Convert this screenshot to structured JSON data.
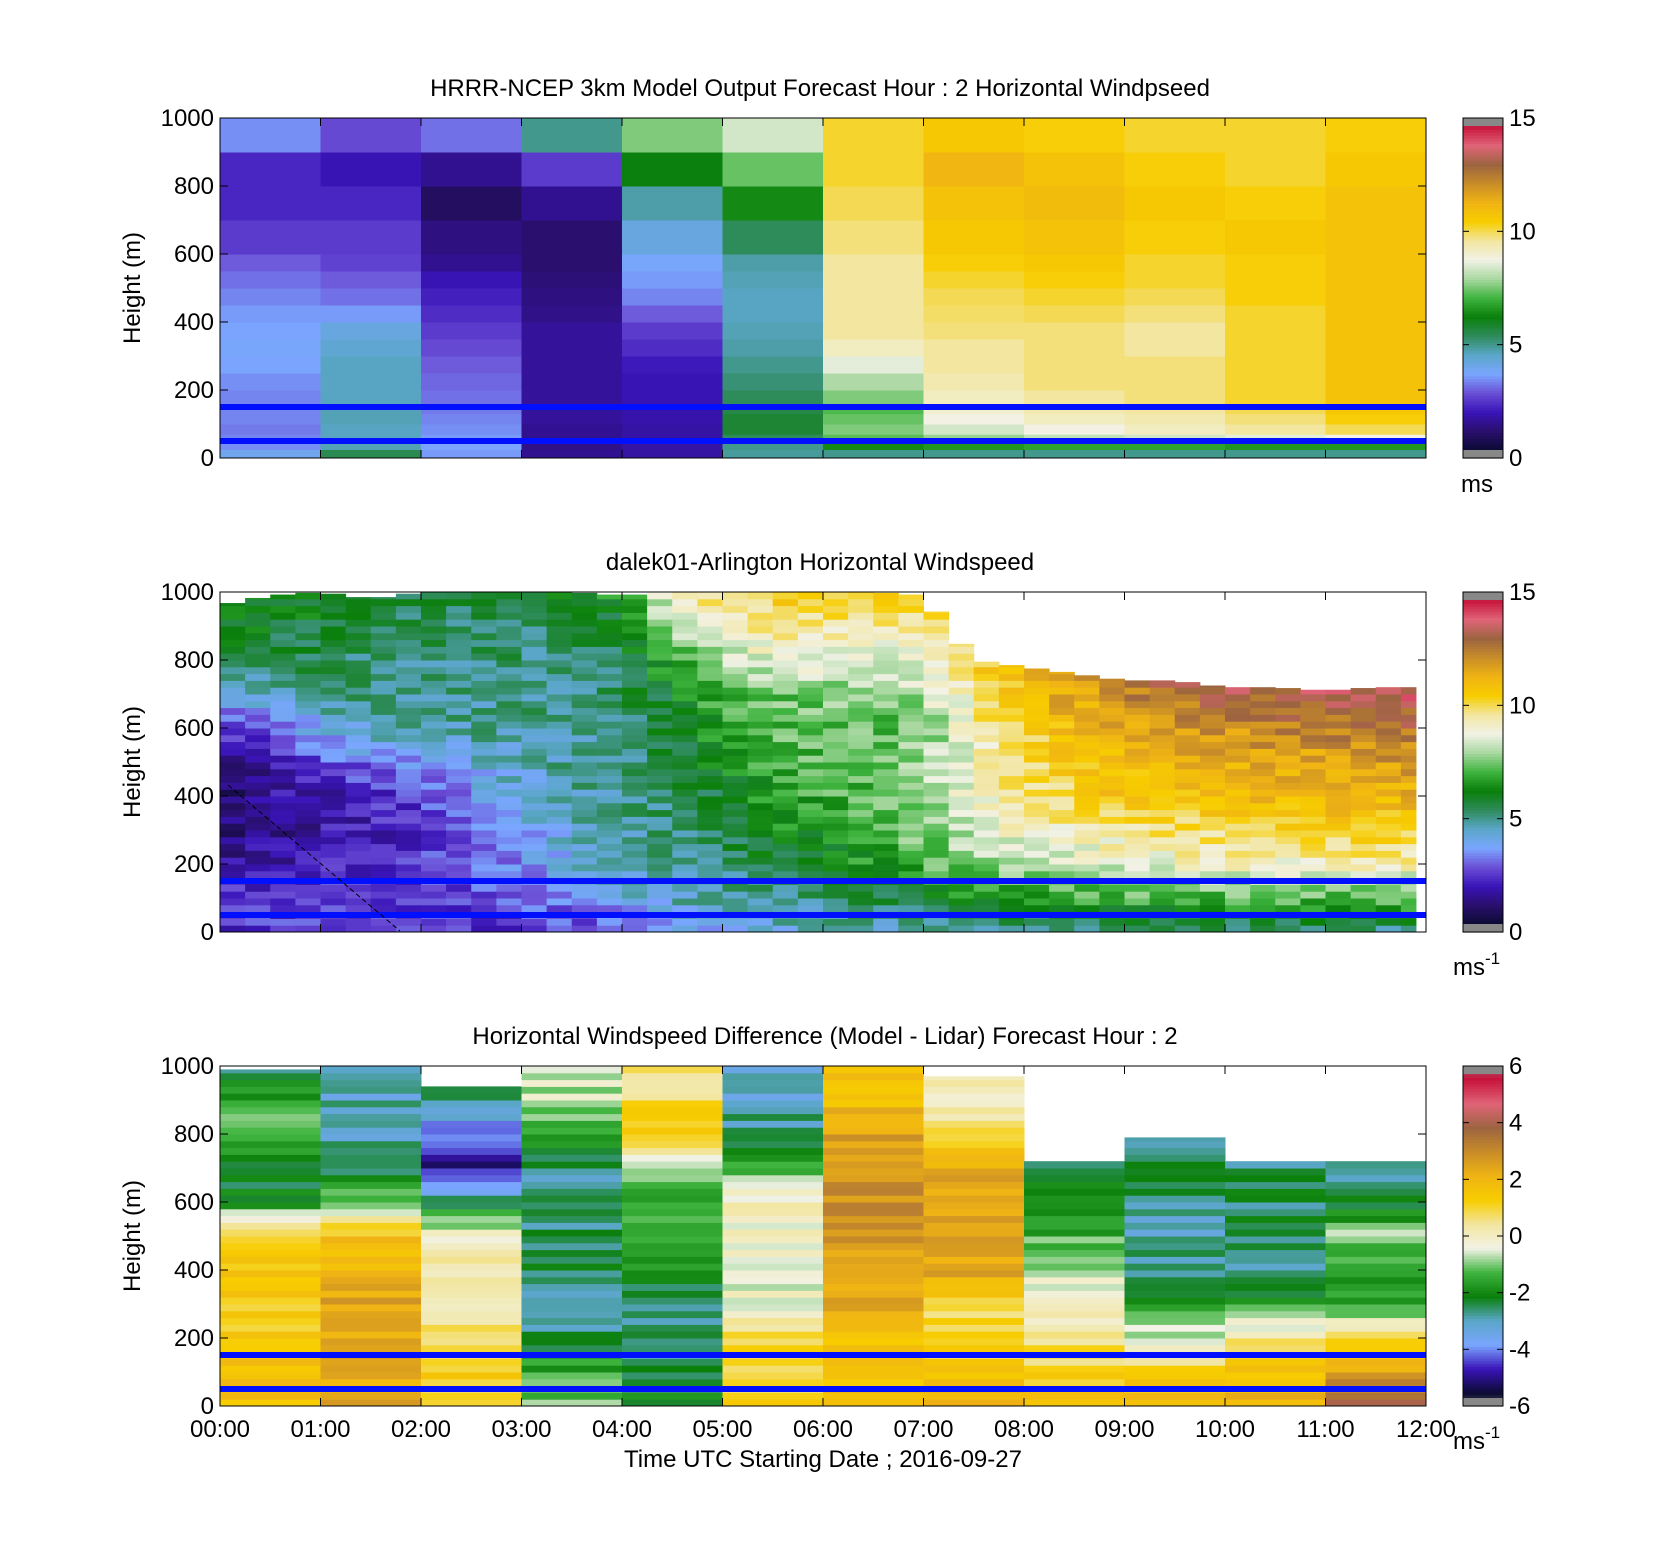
{
  "colors": {
    "speed_stops": [
      "#888888",
      "#0b0b33",
      "#2a0f6e",
      "#3a14b8",
      "#6b4fd6",
      "#7aa6ff",
      "#5aa6c8",
      "#2e8b5a",
      "#0a7f0a",
      "#3fb43f",
      "#a8d8a0",
      "#f2f2e6",
      "#f2e6a0",
      "#f7cd00",
      "#f0b414",
      "#c88c28",
      "#9c6440",
      "#e06478",
      "#c8143c",
      "#888888"
    ],
    "diff_stops": [
      "#888888",
      "#0b0b33",
      "#3a14b8",
      "#7aa6ff",
      "#5aa6c8",
      "#0a7f0a",
      "#3fb43f",
      "#f2f2e6",
      "#f2e6a0",
      "#f7cd00",
      "#f0b414",
      "#c88c28",
      "#9c6440",
      "#e06478",
      "#c8143c",
      "#888888"
    ],
    "reference_line": "#0010ff"
  },
  "chart_data": [
    {
      "type": "heatmap",
      "title": "HRRR-NCEP 3km Model Output   Forecast Hour : 2 Horizontal Windpseed",
      "ylabel": "Height (m)",
      "xlabel": "",
      "x": [
        "00:00",
        "01:00",
        "02:00",
        "03:00",
        "04:00",
        "05:00",
        "06:00",
        "07:00",
        "08:00",
        "09:00",
        "10:00",
        "11:00",
        "12:00"
      ],
      "xlim": [
        0,
        12
      ],
      "ylim": [
        0,
        1000
      ],
      "yticks": [
        "0",
        "200",
        "400",
        "600",
        "800",
        "1000"
      ],
      "colorbar": {
        "min": 0,
        "max": 15,
        "ticks": [
          "0",
          "5",
          "10",
          "15"
        ],
        "unit": "ms"
      },
      "reference_lines_m": [
        50,
        150
      ],
      "heights": [
        0,
        25,
        45,
        70,
        100,
        130,
        160,
        200,
        250,
        300,
        350,
        400,
        450,
        500,
        550,
        600,
        700,
        800,
        900,
        1000
      ],
      "columns": [
        [
          4.0,
          3.5,
          3.4,
          3.3,
          3.4,
          3.4,
          3.4,
          3.5,
          3.7,
          3.8,
          3.7,
          3.6,
          3.4,
          3.2,
          3.0,
          2.6,
          2.3,
          2.3,
          3.5
        ],
        [
          5.5,
          4.7,
          4.6,
          4.6,
          4.7,
          4.7,
          4.6,
          4.6,
          4.6,
          4.4,
          4.2,
          3.6,
          3.2,
          3.0,
          2.7,
          2.6,
          2.3,
          2.0,
          2.8
        ],
        [
          3.6,
          3.7,
          3.6,
          3.5,
          3.4,
          3.3,
          3.2,
          3.1,
          3.0,
          2.8,
          2.6,
          2.4,
          2.2,
          2.0,
          1.6,
          1.4,
          1.0,
          1.6,
          3.2
        ],
        [
          1.6,
          1.5,
          1.6,
          1.6,
          1.7,
          1.7,
          1.7,
          1.7,
          1.7,
          1.7,
          1.7,
          1.5,
          1.4,
          1.3,
          1.2,
          1.2,
          1.6,
          2.6,
          5.0
        ],
        [
          1.8,
          1.8,
          1.8,
          1.8,
          1.9,
          1.9,
          2.0,
          2.0,
          2.1,
          2.4,
          2.6,
          3.0,
          3.4,
          3.6,
          3.8,
          4.2,
          4.8,
          6.2,
          7.6
        ],
        [
          4.9,
          5.0,
          5.4,
          5.8,
          5.8,
          5.6,
          5.4,
          5.2,
          5.0,
          4.8,
          4.7,
          4.6,
          4.6,
          4.7,
          4.8,
          5.4,
          6.4,
          7.4,
          8.4
        ],
        [
          5.0,
          6.4,
          7.3,
          7.6,
          7.4,
          7.2,
          7.6,
          8.0,
          8.6,
          9.2,
          9.6,
          9.6,
          9.6,
          9.6,
          9.6,
          9.8,
          10.0,
          10.2,
          10.2
        ],
        [
          5.0,
          6.6,
          7.8,
          8.4,
          8.8,
          9.0,
          9.2,
          9.4,
          9.6,
          9.6,
          9.8,
          9.9,
          10.0,
          10.2,
          10.4,
          10.6,
          10.8,
          11.2,
          10.6
        ],
        [
          5.0,
          6.8,
          8.2,
          8.8,
          9.2,
          9.4,
          9.6,
          9.8,
          9.8,
          9.8,
          9.8,
          10.0,
          10.2,
          10.4,
          10.6,
          10.8,
          11.0,
          10.8,
          10.4
        ],
        [
          5.0,
          6.8,
          8.4,
          9.2,
          9.4,
          9.6,
          9.8,
          9.8,
          9.8,
          9.6,
          9.6,
          9.8,
          10.0,
          10.2,
          10.2,
          10.4,
          10.6,
          10.4,
          10.2
        ],
        [
          5.0,
          6.6,
          8.6,
          9.6,
          9.8,
          10.0,
          10.2,
          10.2,
          10.2,
          10.2,
          10.2,
          10.2,
          10.4,
          10.4,
          10.4,
          10.6,
          10.4,
          10.2,
          10.2
        ],
        [
          5.0,
          6.6,
          8.8,
          10.0,
          10.4,
          10.6,
          10.8,
          10.8,
          10.8,
          10.8,
          10.8,
          10.8,
          10.8,
          10.8,
          10.8,
          10.8,
          10.8,
          10.6,
          10.4
        ]
      ]
    },
    {
      "type": "heatmap",
      "title": "dalek01-Arlington  Horizontal Windspeed",
      "ylabel": "Height (m)",
      "xlabel": "",
      "x": [
        "00:00",
        "01:00",
        "02:00",
        "03:00",
        "04:00",
        "05:00",
        "06:00",
        "07:00",
        "08:00",
        "09:00",
        "10:00",
        "11:00",
        "12:00"
      ],
      "xlim": [
        0,
        12
      ],
      "ylim": [
        0,
        1000
      ],
      "yticks": [
        "0",
        "200",
        "400",
        "600",
        "800",
        "1000"
      ],
      "colorbar": {
        "min": 0,
        "max": 15,
        "ticks": [
          "0",
          "5",
          "10",
          "15"
        ],
        "unit": "ms",
        "unit_exponent": "-1"
      },
      "reference_lines_m": [
        50,
        150
      ],
      "data_end_hour": 11.9,
      "column_hours": [
        0.0,
        0.5,
        1.0,
        1.5,
        2.0,
        2.5,
        3.0,
        3.5,
        4.0,
        4.5,
        5.0,
        5.5,
        6.0,
        6.5,
        7.0,
        7.5,
        8.0,
        8.5,
        9.0,
        9.5,
        10.0,
        10.5,
        11.0,
        11.5,
        12.0
      ],
      "top_heights": [
        960,
        990,
        1000,
        980,
        1000,
        1000,
        1000,
        1000,
        990,
        1000,
        1000,
        1000,
        1000,
        1000,
        990,
        800,
        780,
        760,
        740,
        740,
        720,
        720,
        710,
        720,
        720
      ],
      "profile_heights": [
        0,
        100,
        200,
        300,
        400,
        500,
        600,
        700,
        800,
        900,
        1000
      ],
      "profiles": [
        [
          2.5,
          2.4,
          1.8,
          1.4,
          1.2,
          1.5,
          2.5,
          4.5,
          5.5,
          6.0,
          6.5
        ],
        [
          2.5,
          2.6,
          2.0,
          1.6,
          1.6,
          2.0,
          3.0,
          4.5,
          5.5,
          6.0,
          6.5
        ],
        [
          2.5,
          2.6,
          2.2,
          1.9,
          2.0,
          2.8,
          4.0,
          5.0,
          5.5,
          5.8,
          6.2
        ],
        [
          2.5,
          2.6,
          2.4,
          2.1,
          2.3,
          3.2,
          4.6,
          5.0,
          5.2,
          5.6,
          6.0
        ],
        [
          2.4,
          2.6,
          2.6,
          2.5,
          2.8,
          3.8,
          4.8,
          5.0,
          5.2,
          5.4,
          5.8
        ],
        [
          2.4,
          2.7,
          3.0,
          3.2,
          3.6,
          4.2,
          4.9,
          5.0,
          5.2,
          5.4,
          5.6
        ],
        [
          2.6,
          3.0,
          3.6,
          3.8,
          4.2,
          4.6,
          4.9,
          5.1,
          5.2,
          5.4,
          5.6
        ],
        [
          2.6,
          3.4,
          4.2,
          4.4,
          4.8,
          4.9,
          5.0,
          5.1,
          5.2,
          5.5,
          6.0
        ],
        [
          3.0,
          4.0,
          4.8,
          4.9,
          5.0,
          5.0,
          5.2,
          5.4,
          5.6,
          6.0,
          6.6
        ],
        [
          3.4,
          4.6,
          5.0,
          5.2,
          5.4,
          5.6,
          5.8,
          6.2,
          7.0,
          8.0,
          9.0
        ],
        [
          4.0,
          4.8,
          5.2,
          5.6,
          6.0,
          6.4,
          6.8,
          7.2,
          8.0,
          9.0,
          10.0
        ],
        [
          4.2,
          5.0,
          5.6,
          6.2,
          6.6,
          7.0,
          7.2,
          7.4,
          8.6,
          9.6,
          10.6
        ],
        [
          4.4,
          5.2,
          6.0,
          6.6,
          7.0,
          7.2,
          7.4,
          7.6,
          8.8,
          9.6,
          10.6
        ],
        [
          4.6,
          5.6,
          6.6,
          7.0,
          7.2,
          7.4,
          7.2,
          7.6,
          8.6,
          9.4,
          10.2
        ],
        [
          4.6,
          6.0,
          7.2,
          7.6,
          7.8,
          7.8,
          7.6,
          8.0,
          9.0,
          9.6,
          10.2
        ],
        [
          4.8,
          6.4,
          7.6,
          8.4,
          8.8,
          9.0,
          9.2,
          9.6,
          10.4,
          10.8,
          11.0
        ],
        [
          4.8,
          6.6,
          8.0,
          9.0,
          9.6,
          10.0,
          10.4,
          10.8,
          11.2,
          11.4,
          11.6
        ],
        [
          5.0,
          6.8,
          8.4,
          9.4,
          10.2,
          10.6,
          11.0,
          11.6,
          12.0,
          12.0,
          12.0
        ],
        [
          5.0,
          7.0,
          8.6,
          9.6,
          10.6,
          11.0,
          11.4,
          12.2,
          12.4,
          12.4,
          12.4
        ],
        [
          5.0,
          7.0,
          8.8,
          9.8,
          10.8,
          11.2,
          11.8,
          12.8,
          13.4,
          13.4,
          13.4
        ],
        [
          5.0,
          7.2,
          9.0,
          10.0,
          11.0,
          11.4,
          12.0,
          13.0,
          13.6,
          13.6,
          13.6
        ],
        [
          5.0,
          7.2,
          9.0,
          10.2,
          11.0,
          11.6,
          12.2,
          13.2,
          13.8,
          13.8,
          13.8
        ],
        [
          5.0,
          7.2,
          9.2,
          10.2,
          11.2,
          11.6,
          12.4,
          13.4,
          14.0,
          14.0,
          14.0
        ],
        [
          5.0,
          7.2,
          9.2,
          10.4,
          11.2,
          11.8,
          12.6,
          13.6,
          14.0,
          14.0,
          14.0
        ],
        [
          5.0,
          7.2,
          9.2,
          10.4,
          11.2,
          11.8,
          12.6,
          13.6,
          14.0,
          14.0,
          14.0
        ]
      ]
    },
    {
      "type": "heatmap",
      "title": "Horizontal Windspeed Difference (Model - Lidar) Forecast Hour : 2",
      "ylabel": "Height (m)",
      "xlabel": "Time UTC  Starting Date ; 2016-09-27",
      "x": [
        "00:00",
        "01:00",
        "02:00",
        "03:00",
        "04:00",
        "05:00",
        "06:00",
        "07:00",
        "08:00",
        "09:00",
        "10:00",
        "11:00",
        "12:00"
      ],
      "xlim": [
        0,
        12
      ],
      "ylim": [
        0,
        1000
      ],
      "yticks": [
        "0",
        "200",
        "400",
        "600",
        "800",
        "1000"
      ],
      "colorbar": {
        "min": -6,
        "max": 6,
        "ticks": [
          "-6",
          "-4",
          "-2",
          "0",
          "2",
          "4",
          "6"
        ],
        "unit": "ms",
        "unit_exponent": "-1"
      },
      "reference_lines_m": [
        50,
        150
      ],
      "column_tops": [
        990,
        1000,
        940,
        1000,
        1000,
        1000,
        1000,
        970,
        720,
        790,
        720,
        720
      ],
      "heights": [
        0,
        100,
        200,
        300,
        400,
        500,
        600,
        700,
        800,
        900,
        1000
      ],
      "columns": [
        [
          1.8,
          1.6,
          1.4,
          1.4,
          1.6,
          1.4,
          -2.0,
          -2.2,
          -1.2,
          -1.6,
          -2.4
        ],
        [
          2.4,
          2.4,
          2.4,
          2.4,
          2.2,
          1.6,
          -1.0,
          -2.6,
          -3.0,
          -3.0,
          -3.0
        ],
        [
          1.0,
          1.4,
          0.6,
          0.4,
          0.2,
          0.0,
          -2.6,
          -5.0,
          -4.2,
          -2.6,
          -2.6
        ],
        [
          -1.0,
          -1.4,
          -2.6,
          -2.6,
          -2.4,
          -2.4,
          -2.8,
          -2.6,
          -1.6,
          -0.6,
          -0.6
        ],
        [
          -2.0,
          -2.4,
          -2.6,
          -2.6,
          -2.0,
          -1.6,
          -1.4,
          -0.6,
          1.4,
          0.8,
          0.8
        ],
        [
          1.0,
          1.0,
          0.8,
          -0.4,
          -0.2,
          -0.2,
          0.2,
          -1.6,
          -2.6,
          -3.0,
          -3.0
        ],
        [
          1.6,
          1.6,
          1.8,
          2.2,
          2.6,
          2.8,
          2.8,
          2.8,
          2.4,
          1.8,
          1.8
        ],
        [
          1.8,
          1.4,
          0.8,
          1.0,
          2.4,
          2.6,
          2.4,
          2.2,
          0.6,
          0.2,
          0.2
        ],
        [
          2.0,
          1.0,
          0.6,
          0.0,
          -0.6,
          -1.4,
          -2.0,
          -2.4,
          -2.4,
          -2.4,
          -2.4
        ],
        [
          2.0,
          1.0,
          -0.6,
          -1.6,
          -2.6,
          -3.0,
          -2.6,
          -2.0,
          -3.2,
          -3.2,
          -3.2
        ],
        [
          2.0,
          1.6,
          0.4,
          -1.6,
          -2.8,
          -2.6,
          -2.4,
          -2.6,
          -4.6,
          -4.6,
          -4.6
        ],
        [
          4.4,
          2.6,
          0.8,
          -1.6,
          -2.0,
          -0.8,
          -2.4,
          -2.8,
          -2.8,
          -2.8,
          -2.8
        ]
      ]
    }
  ]
}
